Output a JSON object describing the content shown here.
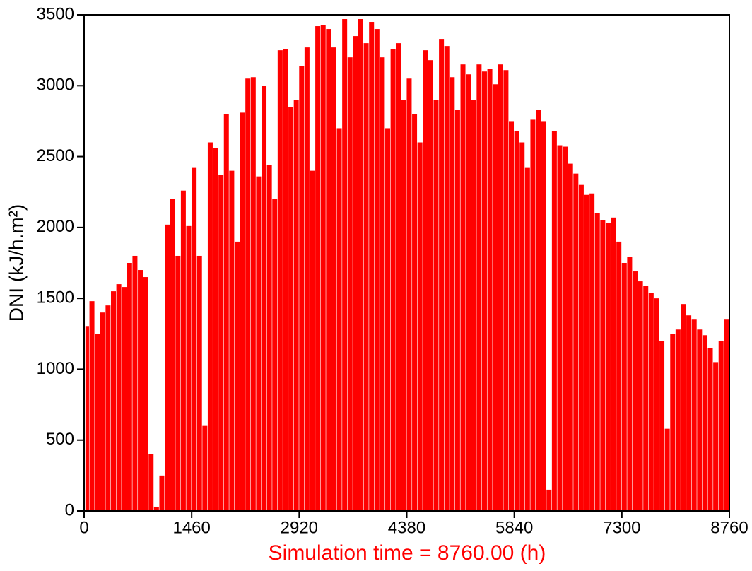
{
  "chart_data": {
    "type": "bar",
    "y_label": "DNI (kJ/h.m²)",
    "x_label": "Simulation time = 8760.00 (h)",
    "x_label_color": "#ff0000",
    "color": "#ff0000",
    "x": [
      36,
      109,
      182,
      255,
      328,
      401,
      474,
      547,
      620,
      693,
      766,
      839,
      912,
      985,
      1058,
      1131,
      1204,
      1277,
      1350,
      1423,
      1496,
      1569,
      1642,
      1715,
      1788,
      1861,
      1934,
      2007,
      2080,
      2153,
      2226,
      2299,
      2372,
      2445,
      2518,
      2591,
      2664,
      2737,
      2810,
      2883,
      2956,
      3029,
      3102,
      3175,
      3248,
      3321,
      3394,
      3467,
      3540,
      3613,
      3686,
      3759,
      3832,
      3905,
      3978,
      4051,
      4124,
      4197,
      4270,
      4343,
      4416,
      4489,
      4562,
      4635,
      4708,
      4781,
      4854,
      4927,
      5000,
      5073,
      5146,
      5219,
      5292,
      5365,
      5438,
      5511,
      5584,
      5657,
      5730,
      5803,
      5876,
      5949,
      6022,
      6095,
      6168,
      6241,
      6314,
      6387,
      6460,
      6533,
      6606,
      6679,
      6752,
      6825,
      6898,
      6971,
      7044,
      7117,
      7190,
      7263,
      7336,
      7409,
      7482,
      7555,
      7628,
      7701,
      7774,
      7847,
      7920,
      7993,
      8066,
      8139,
      8212,
      8285,
      8358,
      8431,
      8504,
      8577,
      8650,
      8723
    ],
    "values": [
      1300,
      1480,
      1250,
      1400,
      1450,
      1550,
      1600,
      1580,
      1750,
      1800,
      1700,
      1650,
      400,
      30,
      250,
      2020,
      2200,
      1800,
      2260,
      2010,
      2420,
      1800,
      600,
      2600,
      2560,
      2370,
      2800,
      2400,
      1900,
      2810,
      3050,
      3060,
      2360,
      3000,
      2440,
      2200,
      3250,
      3260,
      2850,
      2900,
      3140,
      3270,
      2400,
      3420,
      3430,
      3400,
      3270,
      2700,
      3470,
      3200,
      3350,
      3470,
      3300,
      3450,
      3400,
      3200,
      2700,
      3260,
      3300,
      2900,
      3050,
      2800,
      2600,
      3250,
      3180,
      2900,
      3330,
      3280,
      3060,
      2830,
      3150,
      3080,
      2900,
      3150,
      3100,
      3120,
      3010,
      3150,
      3110,
      2750,
      2680,
      2600,
      2420,
      2760,
      2830,
      2750,
      150,
      2680,
      2580,
      2570,
      2450,
      2380,
      2300,
      2230,
      2240,
      2100,
      2050,
      2030,
      2070,
      1900,
      1750,
      1790,
      1690,
      1620,
      1590,
      1540,
      1500,
      1200,
      580,
      1250,
      1280,
      1460,
      1380,
      1350,
      1280,
      1240,
      1150,
      1050,
      1200,
      1350
    ],
    "xlim": [
      0,
      8760
    ],
    "xticks": [
      0,
      1460,
      2920,
      4380,
      5840,
      7300,
      8760
    ],
    "ylim": [
      0,
      3500
    ],
    "yticks": [
      0,
      500,
      1000,
      1500,
      2000,
      2500,
      3000,
      3500
    ]
  }
}
